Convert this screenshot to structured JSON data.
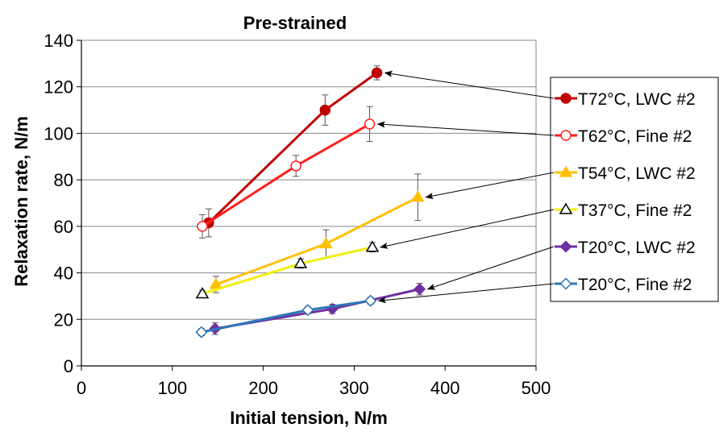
{
  "chart_data": {
    "type": "line",
    "title": "Pre-strained",
    "xlabel": "Initial tension, N/m",
    "ylabel": "Relaxation rate, N/m",
    "xlim": [
      0,
      500
    ],
    "ylim": [
      0,
      140
    ],
    "xticks": [
      0,
      100,
      200,
      300,
      400,
      500
    ],
    "yticks": [
      0,
      20,
      40,
      60,
      80,
      100,
      120,
      140
    ],
    "xtick_labels": [
      "0",
      "100",
      "200",
      "300",
      "400",
      "500"
    ],
    "ytick_labels": [
      "0",
      "20",
      "40",
      "60",
      "80",
      "100",
      "120",
      "140"
    ],
    "grid": "horizontal",
    "legend_position": "right",
    "series": [
      {
        "name": "T72°C, LWC #2",
        "color": "#c00000",
        "marker": "circle-filled",
        "x": [
          140,
          268,
          325
        ],
        "y": [
          61.5,
          110,
          126
        ],
        "error": [
          6,
          6.5,
          3
        ]
      },
      {
        "name": "T62°C, Fine #2",
        "color": "#ff2020",
        "marker": "circle-open",
        "x": [
          133,
          236,
          317
        ],
        "y": [
          60,
          86,
          104
        ],
        "error": [
          5,
          4.5,
          7.5
        ]
      },
      {
        "name": "T54°C, LWC #2",
        "color": "#ffc000",
        "marker": "triangle-filled",
        "x": [
          148,
          269,
          370
        ],
        "y": [
          35,
          52.5,
          72.5
        ],
        "error": [
          3.5,
          6,
          10
        ]
      },
      {
        "name": "T37°C, Fine #2",
        "color": "#ffff00",
        "marker": "triangle-open",
        "x": [
          133,
          241,
          320
        ],
        "y": [
          31,
          44,
          51
        ],
        "error": [
          1.5,
          2,
          2
        ]
      },
      {
        "name": "T20°C, LWC #2",
        "color": "#7030a0",
        "marker": "diamond-filled",
        "x": [
          147,
          276,
          372
        ],
        "y": [
          16,
          24.5,
          33
        ],
        "error": [
          2.5,
          2,
          2.5
        ]
      },
      {
        "name": "T20°C, Fine #2",
        "color": "#2e75b6",
        "marker": "diamond-open",
        "x": [
          132,
          249,
          318
        ],
        "y": [
          14.5,
          24,
          28
        ],
        "error": [
          1.5,
          1.5,
          1.5
        ]
      }
    ]
  }
}
